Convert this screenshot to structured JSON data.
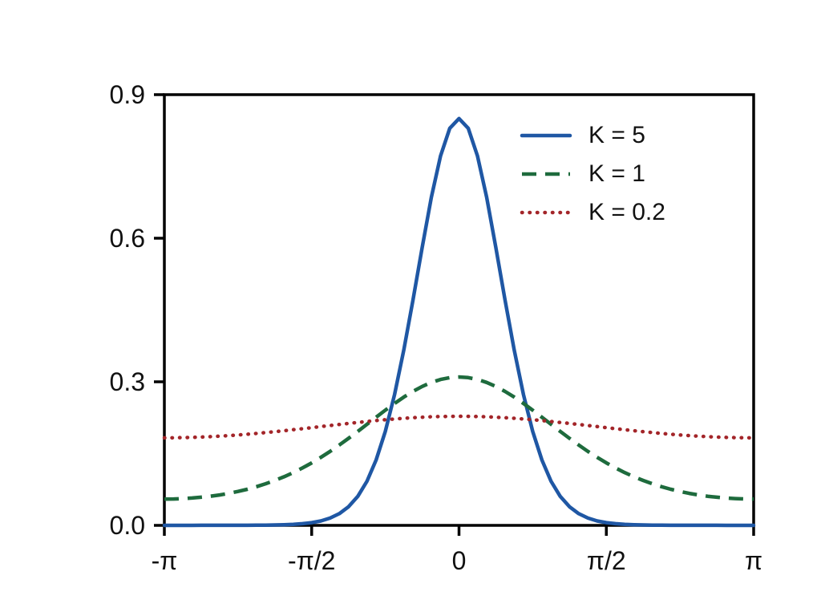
{
  "chart_data": {
    "type": "line",
    "title": "",
    "xlabel": "",
    "ylabel": "",
    "grid": false,
    "legend_position": "upper right inside, no frame",
    "x_unit": "multiples of pi (radians)",
    "xlim": [
      -1,
      1
    ],
    "ylim": [
      0,
      0.9
    ],
    "x_ticks": [
      {
        "value": -1,
        "label": "-π"
      },
      {
        "value": -0.5,
        "label": "-π/2"
      },
      {
        "value": 0,
        "label": "0"
      },
      {
        "value": 0.5,
        "label": "π/2"
      },
      {
        "value": 1,
        "label": "π"
      }
    ],
    "y_ticks": [
      {
        "value": 0.0,
        "label": "0.0"
      },
      {
        "value": 0.3,
        "label": "0.3"
      },
      {
        "value": 0.6,
        "label": "0.6"
      },
      {
        "value": 0.9,
        "label": "0.9"
      }
    ],
    "x": [
      -1,
      -0.96875,
      -0.9375,
      -0.90625,
      -0.875,
      -0.84375,
      -0.8125,
      -0.78125,
      -0.75,
      -0.71875,
      -0.6875,
      -0.65625,
      -0.625,
      -0.59375,
      -0.5625,
      -0.53125,
      -0.5,
      -0.46875,
      -0.4375,
      -0.40625,
      -0.375,
      -0.34375,
      -0.3125,
      -0.28125,
      -0.25,
      -0.21875,
      -0.1875,
      -0.15625,
      -0.125,
      -0.09375,
      -0.0625,
      -0.03125,
      0,
      0.03125,
      0.0625,
      0.09375,
      0.125,
      0.15625,
      0.1875,
      0.21875,
      0.25,
      0.28125,
      0.3125,
      0.34375,
      0.375,
      0.40625,
      0.4375,
      0.46875,
      0.5,
      0.53125,
      0.5625,
      0.59375,
      0.625,
      0.65625,
      0.6875,
      0.71875,
      0.75,
      0.78125,
      0.8125,
      0.84375,
      0.875,
      0.90625,
      0.9375,
      0.96875,
      1
    ],
    "series": [
      {
        "name": "K = 5",
        "style": "solid",
        "color": "#1f57a4",
        "peak": 0.85,
        "values": [
          0,
          0,
          0,
          0,
          0.0001,
          0.0001,
          0.0001,
          0.0001,
          0.0002,
          0.0002,
          0.0004,
          0.0005,
          0.0008,
          0.0013,
          0.0022,
          0.0035,
          0.0057,
          0.0093,
          0.0152,
          0.0244,
          0.0388,
          0.0605,
          0.0921,
          0.1366,
          0.1965,
          0.2732,
          0.366,
          0.471,
          0.5809,
          0.6854,
          0.7721,
          0.8298,
          0.85,
          0.8298,
          0.7721,
          0.6854,
          0.5809,
          0.471,
          0.366,
          0.2732,
          0.1965,
          0.1366,
          0.0921,
          0.0605,
          0.0388,
          0.0244,
          0.0152,
          0.0093,
          0.0057,
          0.0035,
          0.0022,
          0.0013,
          0.0008,
          0.0005,
          0.0004,
          0.0002,
          0.0002,
          0.0001,
          0.0001,
          0.0001,
          0.0001,
          0,
          0,
          0,
          0
        ]
      },
      {
        "name": "K = 1",
        "style": "dashed",
        "color": "#1e6b3d",
        "peak": 0.31,
        "values": [
          0.055,
          0.0552,
          0.0559,
          0.0571,
          0.0588,
          0.0609,
          0.0636,
          0.0669,
          0.0709,
          0.0755,
          0.0808,
          0.0869,
          0.0938,
          0.1016,
          0.1103,
          0.12,
          0.1306,
          0.1421,
          0.1546,
          0.1679,
          0.1818,
          0.1963,
          0.2111,
          0.226,
          0.2407,
          0.2548,
          0.268,
          0.2799,
          0.2903,
          0.2987,
          0.3049,
          0.3087,
          0.31,
          0.3087,
          0.3049,
          0.2987,
          0.2903,
          0.2799,
          0.268,
          0.2548,
          0.2407,
          0.226,
          0.2111,
          0.1963,
          0.1818,
          0.1679,
          0.1546,
          0.1421,
          0.1306,
          0.12,
          0.1103,
          0.1016,
          0.0938,
          0.0869,
          0.0808,
          0.0755,
          0.0709,
          0.0669,
          0.0636,
          0.0609,
          0.0588,
          0.0571,
          0.0559,
          0.0552,
          0.055
        ]
      },
      {
        "name": "K = 0.2",
        "style": "dotted",
        "color": "#a32529",
        "peak": 0.228,
        "values": [
          0.1829,
          0.183,
          0.1833,
          0.1838,
          0.1845,
          0.1853,
          0.1864,
          0.1876,
          0.1889,
          0.1904,
          0.1921,
          0.1939,
          0.1958,
          0.1978,
          0.1999,
          0.202,
          0.2042,
          0.2064,
          0.2086,
          0.2108,
          0.213,
          0.2151,
          0.2171,
          0.219,
          0.2207,
          0.2223,
          0.2238,
          0.225,
          0.226,
          0.2269,
          0.2275,
          0.2278,
          0.2279,
          0.2278,
          0.2275,
          0.2269,
          0.226,
          0.225,
          0.2238,
          0.2223,
          0.2207,
          0.219,
          0.2171,
          0.2151,
          0.213,
          0.2108,
          0.2086,
          0.2064,
          0.2042,
          0.202,
          0.1999,
          0.1978,
          0.1958,
          0.1939,
          0.1921,
          0.1904,
          0.1889,
          0.1876,
          0.1864,
          0.1853,
          0.1845,
          0.1838,
          0.1833,
          0.183,
          0.1829
        ]
      }
    ]
  },
  "style": {
    "axis_color": "#000000",
    "text_color": "#111111",
    "background": "#ffffff"
  }
}
